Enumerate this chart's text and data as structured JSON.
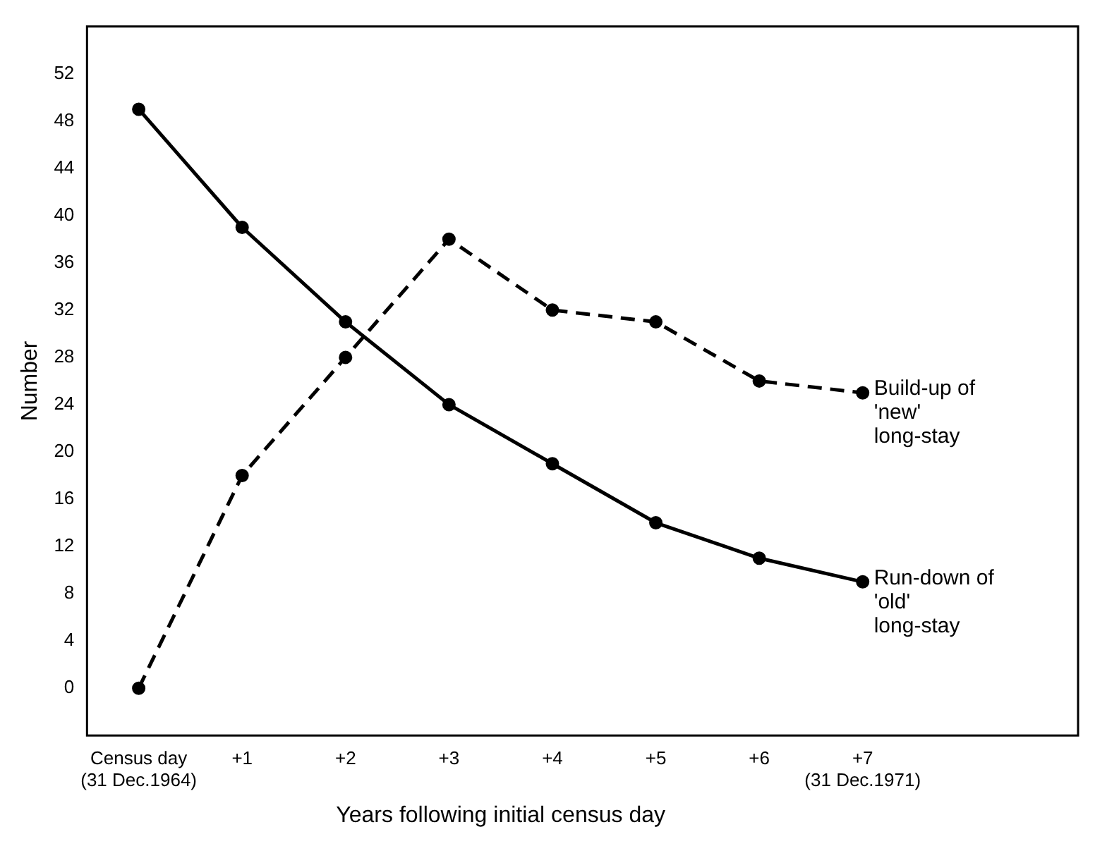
{
  "chart_data": {
    "type": "line",
    "xlabel": "Years following initial census day",
    "ylabel": "Number",
    "categories": [
      "Census day (31 Dec.1964)",
      "+1",
      "+2",
      "+3",
      "+4",
      "+5",
      "+6",
      "+7 (31 Dec.1971)"
    ],
    "series": [
      {
        "name": "Run-down of 'old' long-stay",
        "color": "#000000",
        "line_style": "solid",
        "values": [
          49,
          39,
          31,
          24,
          19,
          14,
          11,
          9
        ]
      },
      {
        "name": "Build-up of 'new' long-stay",
        "color": "#000000",
        "line_style": "dashed",
        "values": [
          0,
          18,
          28,
          38,
          32,
          31,
          26,
          25
        ]
      }
    ],
    "ylim": [
      -4,
      56
    ],
    "yticks": [
      0,
      4,
      8,
      12,
      16,
      20,
      24,
      28,
      32,
      36,
      40,
      44,
      48,
      52
    ],
    "grid": false,
    "legend": false,
    "marker": "circle"
  }
}
